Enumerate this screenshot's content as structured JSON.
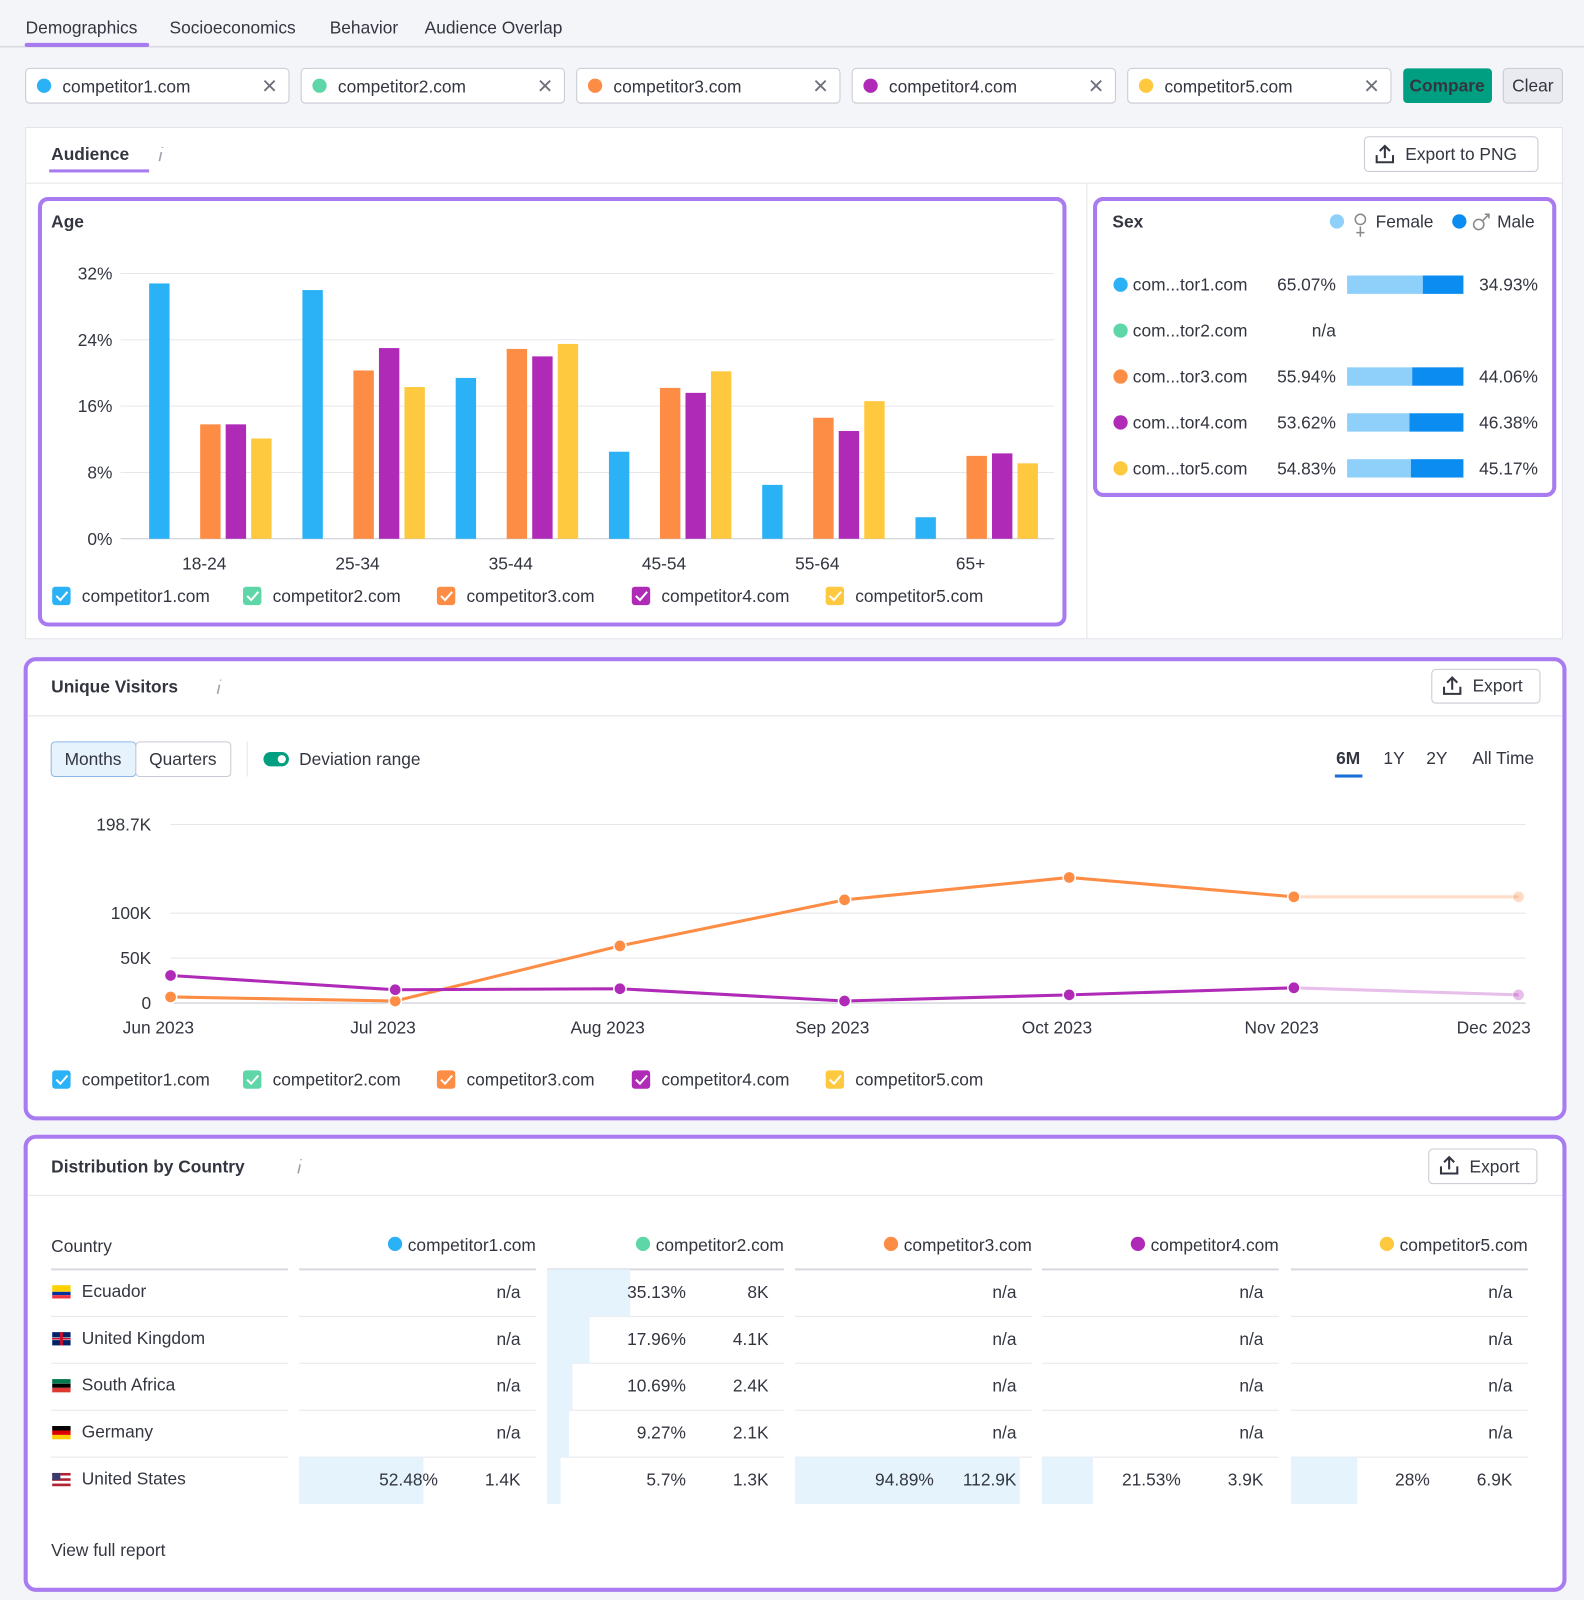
{
  "tabs": [
    "Demographics",
    "Socioeconomics",
    "Behavior",
    "Audience Overlap"
  ],
  "competitors": [
    {
      "name": "competitor1.com",
      "color": "#2bb1f6"
    },
    {
      "name": "competitor2.com",
      "color": "#5fd6a8"
    },
    {
      "name": "competitor3.com",
      "color": "#fd8c45"
    },
    {
      "name": "competitor4.com",
      "color": "#b02ab8"
    },
    {
      "name": "competitor5.com",
      "color": "#fec93e"
    }
  ],
  "compare_button": "Compare",
  "clear_button": "Clear",
  "audience": {
    "title": "Audience",
    "export": "Export to PNG"
  },
  "chart_data": [
    {
      "type": "bar",
      "title": "Age",
      "categories": [
        "18-24",
        "25-34",
        "35-44",
        "45-54",
        "55-64",
        "65+"
      ],
      "series": [
        {
          "name": "competitor1.com",
          "color": "#2bb1f6",
          "values": [
            30.8,
            30.0,
            19.4,
            10.5,
            6.5,
            2.6
          ]
        },
        {
          "name": "competitor2.com",
          "color": "#5fd6a8",
          "values": [
            null,
            null,
            null,
            null,
            null,
            null
          ]
        },
        {
          "name": "competitor3.com",
          "color": "#fd8c45",
          "values": [
            13.8,
            20.3,
            22.9,
            18.2,
            14.6,
            10.0
          ]
        },
        {
          "name": "competitor4.com",
          "color": "#b02ab8",
          "values": [
            13.8,
            23.0,
            22.0,
            17.6,
            13.0,
            10.3
          ]
        },
        {
          "name": "competitor5.com",
          "color": "#fec93e",
          "values": [
            12.1,
            18.3,
            23.5,
            20.2,
            16.6,
            9.1
          ]
        }
      ],
      "ylim": [
        0,
        32
      ],
      "yticks": [
        {
          "value": 0,
          "label": "0%"
        },
        {
          "value": 8,
          "label": "8%"
        },
        {
          "value": 16,
          "label": "16%"
        },
        {
          "value": 24,
          "label": "24%"
        },
        {
          "value": 32,
          "label": "32%"
        }
      ],
      "grid": true
    },
    {
      "type": "stacked-hbar",
      "title": "Sex",
      "categories": [
        "com...tor1.com",
        "com...tor2.com",
        "com...tor3.com",
        "com...tor4.com",
        "com...tor5.com"
      ],
      "series": [
        {
          "name": "Female",
          "color": "#8fd0fb",
          "values": [
            65.07,
            null,
            55.94,
            53.62,
            54.83
          ],
          "value_labels": [
            "65.07%",
            "n/a",
            "55.94%",
            "53.62%",
            "54.83%"
          ]
        },
        {
          "name": "Male",
          "color": "#0a8cf0",
          "values": [
            34.93,
            null,
            44.06,
            46.38,
            45.17
          ],
          "value_labels": [
            "34.93%",
            null,
            "44.06%",
            "46.38%",
            "45.17%"
          ]
        }
      ],
      "xlim": [
        0,
        100
      ]
    },
    {
      "type": "line",
      "title": "Unique Visitors",
      "categories": [
        "Jun 2023",
        "Jul 2023",
        "Aug 2023",
        "Sep 2023",
        "Oct 2023",
        "Nov 2023",
        "Dec 2023"
      ],
      "series": [
        {
          "name": "competitor1.com",
          "color": "#2bb1f6",
          "values": [
            null,
            null,
            null,
            null,
            null,
            null,
            null
          ]
        },
        {
          "name": "competitor2.com",
          "color": "#5fd6a8",
          "values": [
            null,
            null,
            null,
            null,
            null,
            null,
            null
          ]
        },
        {
          "name": "competitor3.com",
          "color": "#fd8c45",
          "values": [
            6800,
            2300,
            63600,
            114800,
            139800,
            118200,
            118200
          ]
        },
        {
          "name": "competitor4.com",
          "color": "#b02ab8",
          "values": [
            30700,
            14800,
            15900,
            2300,
            9100,
            17000,
            9100
          ]
        },
        {
          "name": "competitor5.com",
          "color": "#fec93e",
          "values": [
            null,
            null,
            null,
            null,
            null,
            null,
            null
          ]
        }
      ],
      "ylim": [
        0,
        198700
      ],
      "yticks": [
        0,
        {
          "value": 50000,
          "label": "50K"
        },
        {
          "value": 100000,
          "label": "100K"
        },
        {
          "value": 198700,
          "label": "198.7K"
        }
      ],
      "grid": true
    }
  ],
  "unique_visitors": {
    "export": "Export",
    "period_toggle": [
      "Months",
      "Quarters"
    ],
    "deviation_range": "Deviation range",
    "ranges": [
      "6M",
      "1Y",
      "2Y",
      "All Time"
    ]
  },
  "country_distribution": {
    "title": "Distribution by Country",
    "export": "Export",
    "header": "Country",
    "rows": [
      {
        "country": "Ecuador",
        "cells": [
          "n/a",
          {
            "share": {
              "value": 35.13,
              "label": "35.13%"
            },
            "visits": "8K"
          },
          "n/a",
          "n/a",
          "n/a"
        ]
      },
      {
        "country": "United Kingdom",
        "cells": [
          "n/a",
          {
            "share": {
              "value": 17.96,
              "label": "17.96%"
            },
            "visits": "4.1K"
          },
          "n/a",
          "n/a",
          "n/a"
        ]
      },
      {
        "country": "South Africa",
        "cells": [
          "n/a",
          {
            "share": {
              "value": 10.69,
              "label": "10.69%"
            },
            "visits": "2.4K"
          },
          "n/a",
          "n/a",
          "n/a"
        ]
      },
      {
        "country": "Germany",
        "cells": [
          "n/a",
          {
            "share": {
              "value": 9.27,
              "label": "9.27%"
            },
            "visits": "2.1K"
          },
          "n/a",
          "n/a",
          "n/a"
        ]
      },
      {
        "country": "United States",
        "cells": [
          {
            "share": {
              "value": 52.48,
              "label": "52.48%"
            },
            "visits": "1.4K"
          },
          {
            "share": {
              "value": 5.7,
              "label": "5.7%"
            },
            "visits": "1.3K"
          },
          {
            "share": {
              "value": 94.89,
              "label": "94.89%"
            },
            "visits": "112.9K"
          },
          {
            "share": {
              "value": 21.53,
              "label": "21.53%"
            },
            "visits": "3.9K"
          },
          {
            "share": {
              "value": 28,
              "label": "28%"
            },
            "visits": "6.9K"
          }
        ]
      }
    ],
    "link": "View full report"
  }
}
